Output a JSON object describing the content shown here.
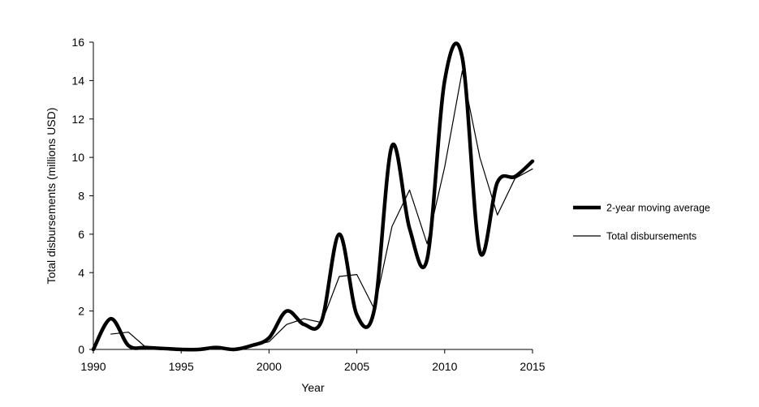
{
  "chart_data": {
    "type": "line",
    "title": "",
    "xlabel": "Year",
    "ylabel": "Total disbursements (millions USD)",
    "xlim": [
      1990,
      2015
    ],
    "ylim": [
      0,
      16
    ],
    "x_ticks": [
      1990,
      1995,
      2000,
      2005,
      2010,
      2015
    ],
    "y_ticks": [
      0,
      2,
      4,
      6,
      8,
      10,
      12,
      14,
      16
    ],
    "grid": false,
    "legend_position": "right",
    "series": [
      {
        "name": "2-year moving average",
        "style": "thick smoothed",
        "color": "#000000",
        "x": [
          1990,
          1991,
          1992,
          1993,
          1994,
          1995,
          1996,
          1997,
          1998,
          1999,
          2000,
          2001,
          2002,
          2003,
          2004,
          2005,
          2006,
          2007,
          2008,
          2009,
          2010,
          2011,
          2012,
          2013,
          2014,
          2015
        ],
        "y": [
          0.0,
          1.6,
          0.2,
          0.1,
          0.05,
          0.0,
          0.0,
          0.1,
          0.0,
          0.2,
          0.6,
          2.0,
          1.3,
          1.5,
          6.0,
          1.8,
          2.1,
          10.6,
          6.3,
          4.7,
          14.0,
          15.2,
          5.1,
          8.7,
          9.0,
          9.8
        ]
      },
      {
        "name": "Total disbursements",
        "style": "thin",
        "color": "#000000",
        "x": [
          1991,
          1992,
          1993,
          1994,
          1995,
          1996,
          1997,
          1998,
          1999,
          2000,
          2001,
          2002,
          2003,
          2004,
          2005,
          2006,
          2007,
          2008,
          2009,
          2010,
          2011,
          2012,
          2013,
          2014,
          2015
        ],
        "y": [
          0.8,
          0.9,
          0.1,
          0.05,
          0.0,
          0.0,
          0.05,
          0.0,
          0.2,
          0.4,
          1.3,
          1.6,
          1.4,
          3.8,
          3.9,
          2.1,
          6.4,
          8.3,
          5.5,
          9.5,
          14.5,
          10.0,
          7.0,
          8.9,
          9.4
        ]
      }
    ]
  }
}
